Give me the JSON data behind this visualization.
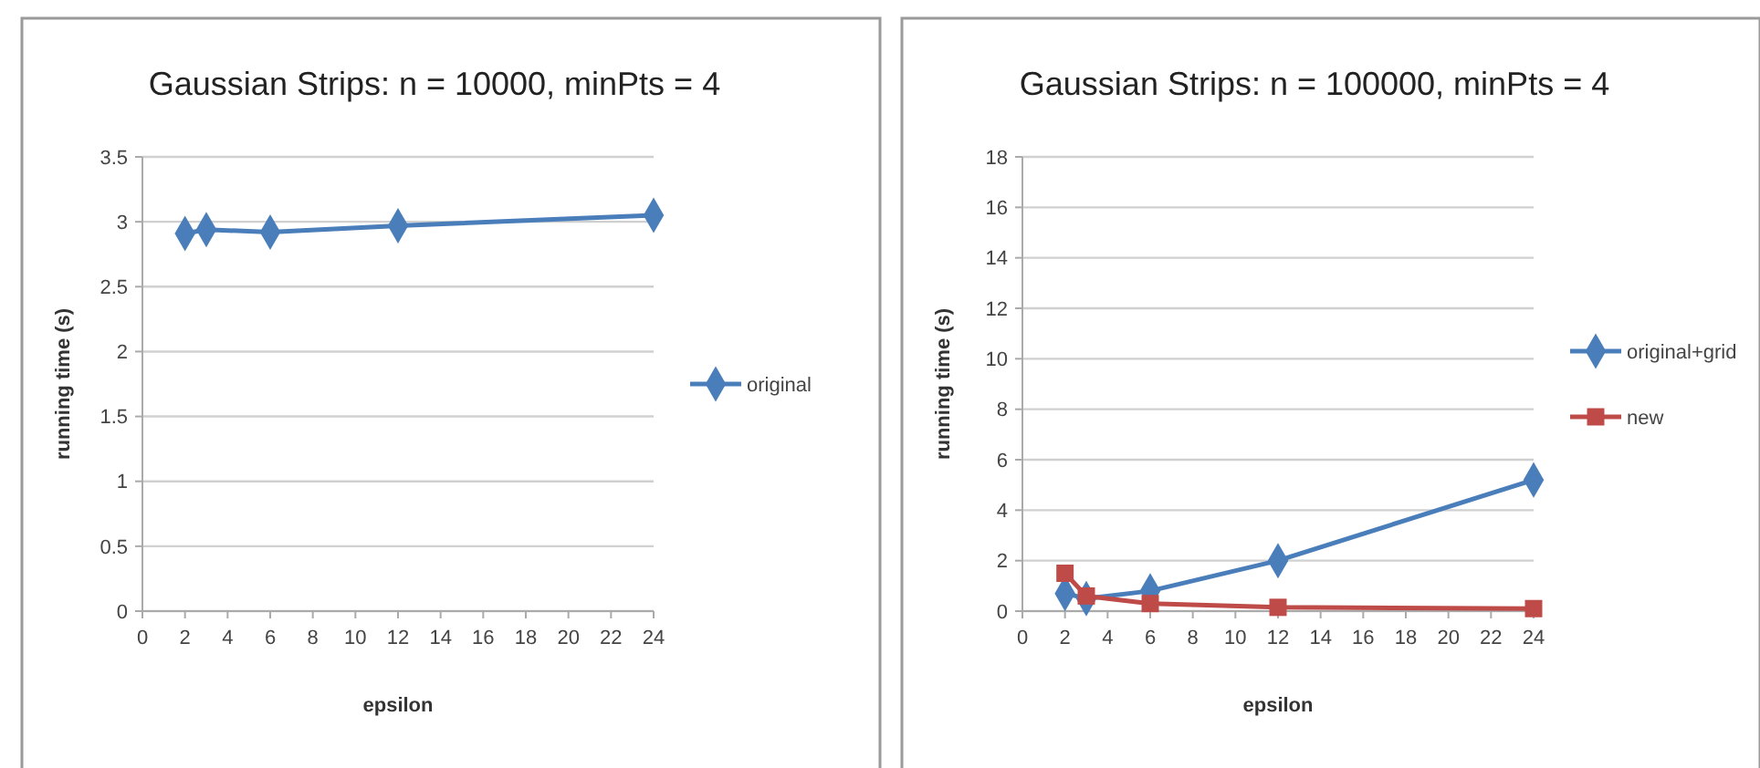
{
  "chart_data": [
    {
      "type": "line",
      "title": "Gaussian Strips: n = 10000, minPts = 4",
      "xlabel": "epsilon",
      "ylabel": "running time (s)",
      "xlim": [
        0,
        24
      ],
      "xticks": [
        0,
        2,
        4,
        6,
        8,
        10,
        12,
        14,
        16,
        18,
        20,
        22,
        24
      ],
      "ylim": [
        0,
        3.5
      ],
      "yticks": [
        0,
        0.5,
        1,
        1.5,
        2,
        2.5,
        3,
        3.5
      ],
      "grid": "y",
      "legend": "right",
      "series": [
        {
          "name": "original",
          "color": "#4a7ebb",
          "marker": "diamond",
          "x": [
            2,
            3,
            6,
            12,
            24
          ],
          "values": [
            2.91,
            2.94,
            2.92,
            2.97,
            3.05
          ]
        }
      ]
    },
    {
      "type": "line",
      "title": "Gaussian Strips: n = 100000, minPts = 4",
      "xlabel": "epsilon",
      "ylabel": "running time (s)",
      "xlim": [
        0,
        24
      ],
      "xticks": [
        0,
        2,
        4,
        6,
        8,
        10,
        12,
        14,
        16,
        18,
        20,
        22,
        24
      ],
      "ylim": [
        0,
        18
      ],
      "yticks": [
        0,
        2,
        4,
        6,
        8,
        10,
        12,
        14,
        16,
        18
      ],
      "grid": "y",
      "legend": "right",
      "series": [
        {
          "name": "original+grid",
          "color": "#4a7ebb",
          "marker": "diamond",
          "x": [
            2,
            3,
            6,
            12,
            24
          ],
          "values": [
            0.7,
            0.5,
            0.8,
            2.0,
            5.2
          ]
        },
        {
          "name": "new",
          "color": "#be4b48",
          "marker": "square",
          "x": [
            2,
            3,
            6,
            12,
            24
          ],
          "values": [
            1.5,
            0.6,
            0.3,
            0.15,
            0.1
          ]
        }
      ]
    }
  ]
}
